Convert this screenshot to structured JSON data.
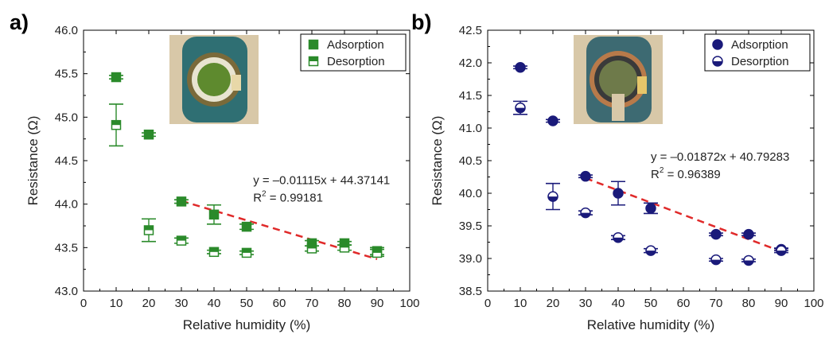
{
  "chart_data": [
    {
      "panel_label": "a)",
      "type": "scatter",
      "xlabel": "Relative humidity (%)",
      "ylabel": "Resistance (Ω)",
      "xlim": [
        0,
        100
      ],
      "ylim": [
        43.0,
        46.0
      ],
      "x_ticks": [
        0,
        10,
        20,
        30,
        40,
        50,
        60,
        70,
        80,
        90,
        100
      ],
      "y_ticks": [
        43.0,
        43.5,
        44.0,
        44.5,
        45.0,
        45.5,
        46.0
      ],
      "y_decimals": 1,
      "color": "#2a8a2a",
      "marker": "square",
      "legend_position": "top-right",
      "series": [
        {
          "name": "Adsorption",
          "fill": "full",
          "points": [
            {
              "x": 10,
              "y": 45.46,
              "err": 0.02
            },
            {
              "x": 20,
              "y": 44.8,
              "err": 0.02
            },
            {
              "x": 30,
              "y": 44.03,
              "err": 0.02
            },
            {
              "x": 40,
              "y": 43.88,
              "err": 0.11
            },
            {
              "x": 50,
              "y": 43.74,
              "err": 0.03
            },
            {
              "x": 70,
              "y": 43.55,
              "err": 0.03
            },
            {
              "x": 80,
              "y": 43.55,
              "err": 0.02
            },
            {
              "x": 90,
              "y": 43.46,
              "err": 0.04
            }
          ]
        },
        {
          "name": "Desorption",
          "fill": "top-half",
          "points": [
            {
              "x": 10,
              "y": 44.91,
              "err": 0.24
            },
            {
              "x": 20,
              "y": 43.7,
              "err": 0.13
            },
            {
              "x": 30,
              "y": 43.58,
              "err": 0.03
            },
            {
              "x": 40,
              "y": 43.45,
              "err": 0.02
            },
            {
              "x": 50,
              "y": 43.44,
              "err": 0.02
            },
            {
              "x": 70,
              "y": 43.49,
              "err": 0.03
            },
            {
              "x": 80,
              "y": 43.5,
              "err": 0.03
            },
            {
              "x": 90,
              "y": 43.44,
              "err": 0.04
            }
          ]
        }
      ],
      "fit": {
        "slope": -0.01115,
        "intercept": 44.37141,
        "x_range": [
          30,
          90
        ],
        "color": "#e02a2a",
        "equation": "y = –0.01115x + 44.37141",
        "r2_prefix": "R",
        "r2_value": " = 0.99181"
      },
      "inset": {
        "variant": "green-electrode"
      }
    },
    {
      "panel_label": "b)",
      "type": "scatter",
      "xlabel": "Relative humidity (%)",
      "ylabel": "Resistance (Ω)",
      "xlim": [
        0,
        100
      ],
      "ylim": [
        38.5,
        42.5
      ],
      "x_ticks": [
        0,
        10,
        20,
        30,
        40,
        50,
        60,
        70,
        80,
        90,
        100
      ],
      "y_ticks": [
        38.5,
        39.0,
        39.5,
        40.0,
        40.5,
        41.0,
        41.5,
        42.0,
        42.5
      ],
      "y_decimals": 1,
      "color": "#1a1a7a",
      "marker": "circle",
      "legend_position": "top-right",
      "series": [
        {
          "name": "Adsorption",
          "fill": "full",
          "points": [
            {
              "x": 10,
              "y": 41.93,
              "err": 0.02
            },
            {
              "x": 20,
              "y": 41.11,
              "err": 0.02
            },
            {
              "x": 30,
              "y": 40.26,
              "err": 0.02
            },
            {
              "x": 40,
              "y": 40.0,
              "err": 0.18
            },
            {
              "x": 50,
              "y": 39.77,
              "err": 0.08
            },
            {
              "x": 70,
              "y": 39.37,
              "err": 0.02
            },
            {
              "x": 80,
              "y": 39.37,
              "err": 0.02
            },
            {
              "x": 90,
              "y": 39.14,
              "err": 0.02
            }
          ]
        },
        {
          "name": "Desorption",
          "fill": "bottom-half",
          "points": [
            {
              "x": 10,
              "y": 41.31,
              "err": 0.1
            },
            {
              "x": 20,
              "y": 39.95,
              "err": 0.2
            },
            {
              "x": 30,
              "y": 39.7,
              "err": 0.03
            },
            {
              "x": 40,
              "y": 39.32,
              "err": 0.03
            },
            {
              "x": 50,
              "y": 39.12,
              "err": 0.03
            },
            {
              "x": 70,
              "y": 38.98,
              "err": 0.02
            },
            {
              "x": 80,
              "y": 38.97,
              "err": 0.02
            },
            {
              "x": 90,
              "y": 39.12,
              "err": 0.03
            }
          ]
        }
      ],
      "fit": {
        "slope": -0.01872,
        "intercept": 40.79283,
        "x_range": [
          30,
          90
        ],
        "color": "#e02a2a",
        "equation": "y = –0.01872x + 40.79283",
        "r2_prefix": "R",
        "r2_value": " = 0.96389"
      },
      "inset": {
        "variant": "copper-electrode"
      }
    }
  ]
}
